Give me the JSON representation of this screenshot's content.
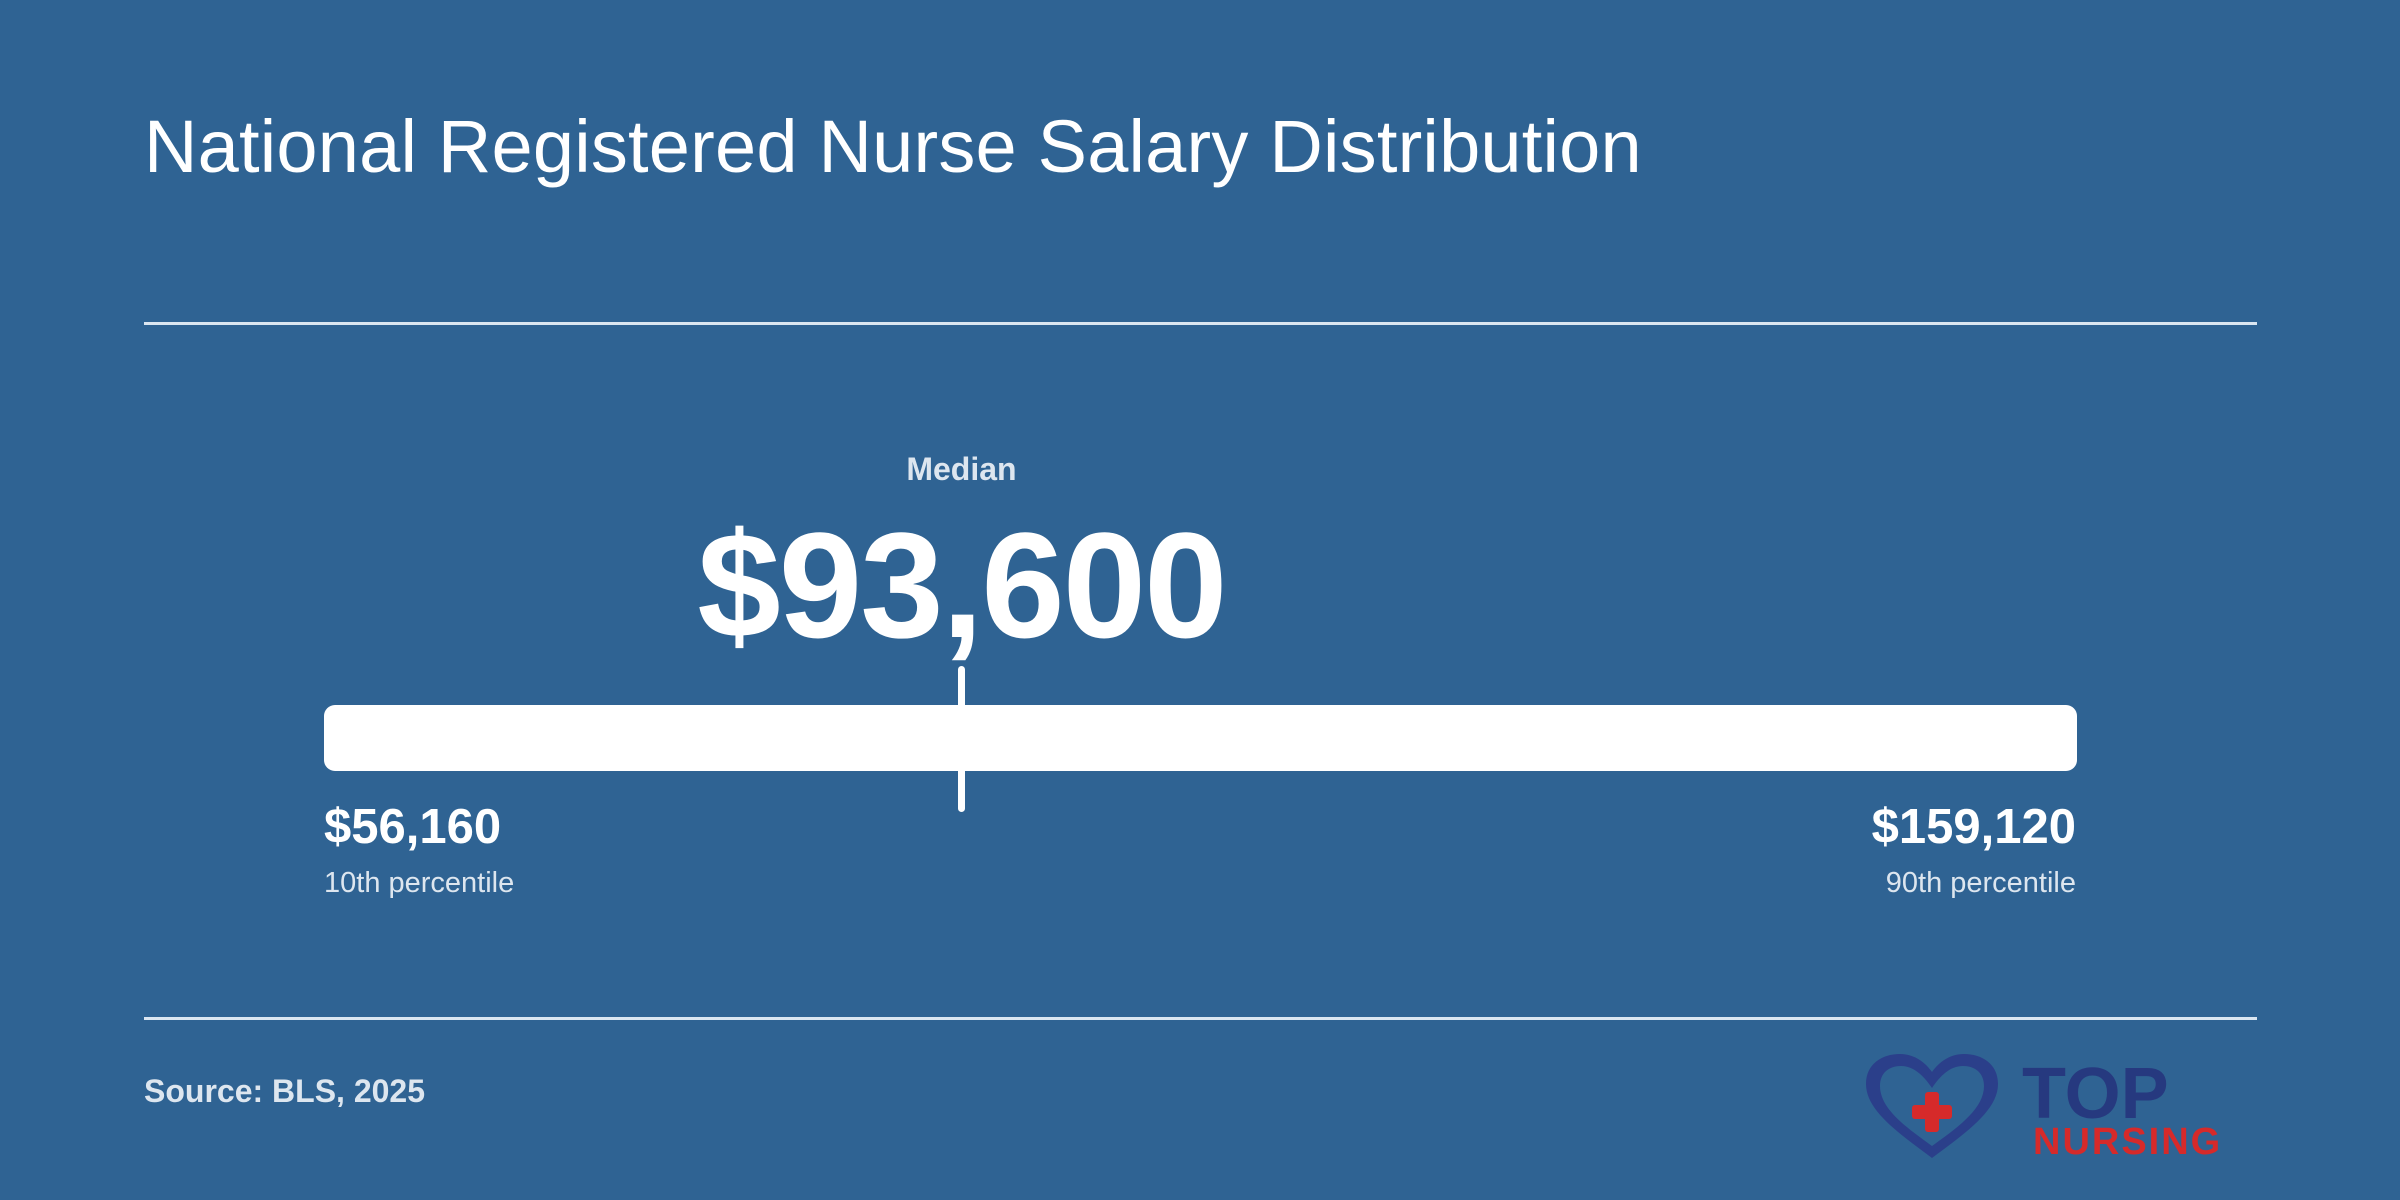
{
  "title": "National Registered Nurse Salary Distribution",
  "median": {
    "label": "Median",
    "value_text": "$93,600",
    "value": 93600
  },
  "range": {
    "low": {
      "value_text": "$56,160",
      "label": "10th percentile",
      "value": 56160
    },
    "high": {
      "value_text": "$159,120",
      "label": "90th percentile",
      "value": 159120
    }
  },
  "source": "Source: BLS, 2025",
  "logo": {
    "line1": "TOP",
    "line2": "NURSING",
    "colors": {
      "heart": "#2b3f8a",
      "cross": "#d62a2a",
      "top_text": "#26397f",
      "nursing_text": "#d62a2a"
    }
  },
  "colors": {
    "background": "#2f6393",
    "text": "#ffffff",
    "muted_text": "#dde6ef",
    "bar": "#ffffff"
  }
}
